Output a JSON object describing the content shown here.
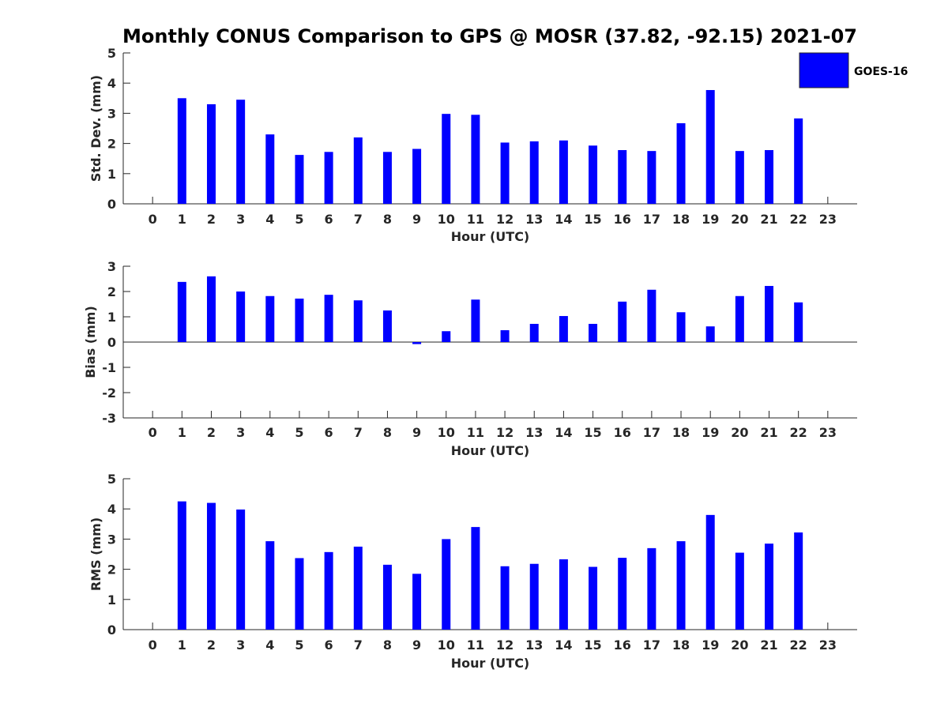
{
  "title": "Monthly CONUS Comparison to GPS @ MOSR (37.82, -92.15) 2021-07",
  "legend": {
    "label": "GOES-16",
    "color": "#0000ff"
  },
  "chart_data": [
    {
      "type": "bar",
      "series_name": "GOES-16",
      "xlabel": "Hour (UTC)",
      "ylabel": "Std. Dev. (mm)",
      "xlim": [
        -1,
        24
      ],
      "ylim": [
        0,
        5
      ],
      "yticks": [
        "0",
        "1",
        "2",
        "3",
        "4",
        "5"
      ],
      "xticks": [
        "0",
        "1",
        "2",
        "3",
        "4",
        "5",
        "6",
        "7",
        "8",
        "9",
        "10",
        "11",
        "12",
        "13",
        "14",
        "15",
        "16",
        "17",
        "18",
        "19",
        "20",
        "21",
        "22",
        "23"
      ],
      "x": [
        1,
        2,
        3,
        4,
        5,
        6,
        7,
        8,
        9,
        10,
        11,
        12,
        13,
        14,
        15,
        16,
        17,
        18,
        19,
        20,
        21,
        22
      ],
      "values": [
        3.5,
        3.3,
        3.45,
        2.3,
        1.62,
        1.72,
        2.2,
        1.72,
        1.82,
        2.98,
        2.95,
        2.03,
        2.07,
        2.1,
        1.93,
        1.78,
        1.75,
        2.67,
        3.77,
        1.75,
        1.78,
        2.83
      ]
    },
    {
      "type": "bar",
      "series_name": "GOES-16",
      "xlabel": "Hour (UTC)",
      "ylabel": "Bias (mm)",
      "xlim": [
        -1,
        24
      ],
      "ylim": [
        -3,
        3
      ],
      "yticks": [
        "-3",
        "-2",
        "-1",
        "0",
        "1",
        "2",
        "3"
      ],
      "xticks": [
        "0",
        "1",
        "2",
        "3",
        "4",
        "5",
        "6",
        "7",
        "8",
        "9",
        "10",
        "11",
        "12",
        "13",
        "14",
        "15",
        "16",
        "17",
        "18",
        "19",
        "20",
        "21",
        "22",
        "23"
      ],
      "x": [
        1,
        2,
        3,
        4,
        5,
        6,
        7,
        8,
        9,
        10,
        11,
        12,
        13,
        14,
        15,
        16,
        17,
        18,
        19,
        20,
        21,
        22
      ],
      "values": [
        2.38,
        2.6,
        2.0,
        1.82,
        1.72,
        1.87,
        1.65,
        1.25,
        -0.08,
        0.43,
        1.68,
        0.47,
        0.72,
        1.03,
        0.72,
        1.6,
        2.07,
        1.18,
        0.62,
        1.82,
        2.22,
        1.57
      ]
    },
    {
      "type": "bar",
      "series_name": "GOES-16",
      "xlabel": "Hour (UTC)",
      "ylabel": "RMS (mm)",
      "xlim": [
        -1,
        24
      ],
      "ylim": [
        0,
        5
      ],
      "yticks": [
        "0",
        "1",
        "2",
        "3",
        "4",
        "5"
      ],
      "xticks": [
        "0",
        "1",
        "2",
        "3",
        "4",
        "5",
        "6",
        "7",
        "8",
        "9",
        "10",
        "11",
        "12",
        "13",
        "14",
        "15",
        "16",
        "17",
        "18",
        "19",
        "20",
        "21",
        "22",
        "23"
      ],
      "x": [
        1,
        2,
        3,
        4,
        5,
        6,
        7,
        8,
        9,
        10,
        11,
        12,
        13,
        14,
        15,
        16,
        17,
        18,
        19,
        20,
        21,
        22
      ],
      "values": [
        4.25,
        4.2,
        3.98,
        2.93,
        2.37,
        2.57,
        2.75,
        2.15,
        1.85,
        3.0,
        3.4,
        2.1,
        2.18,
        2.33,
        2.08,
        2.38,
        2.7,
        2.93,
        3.8,
        2.55,
        2.85,
        3.22
      ]
    }
  ]
}
